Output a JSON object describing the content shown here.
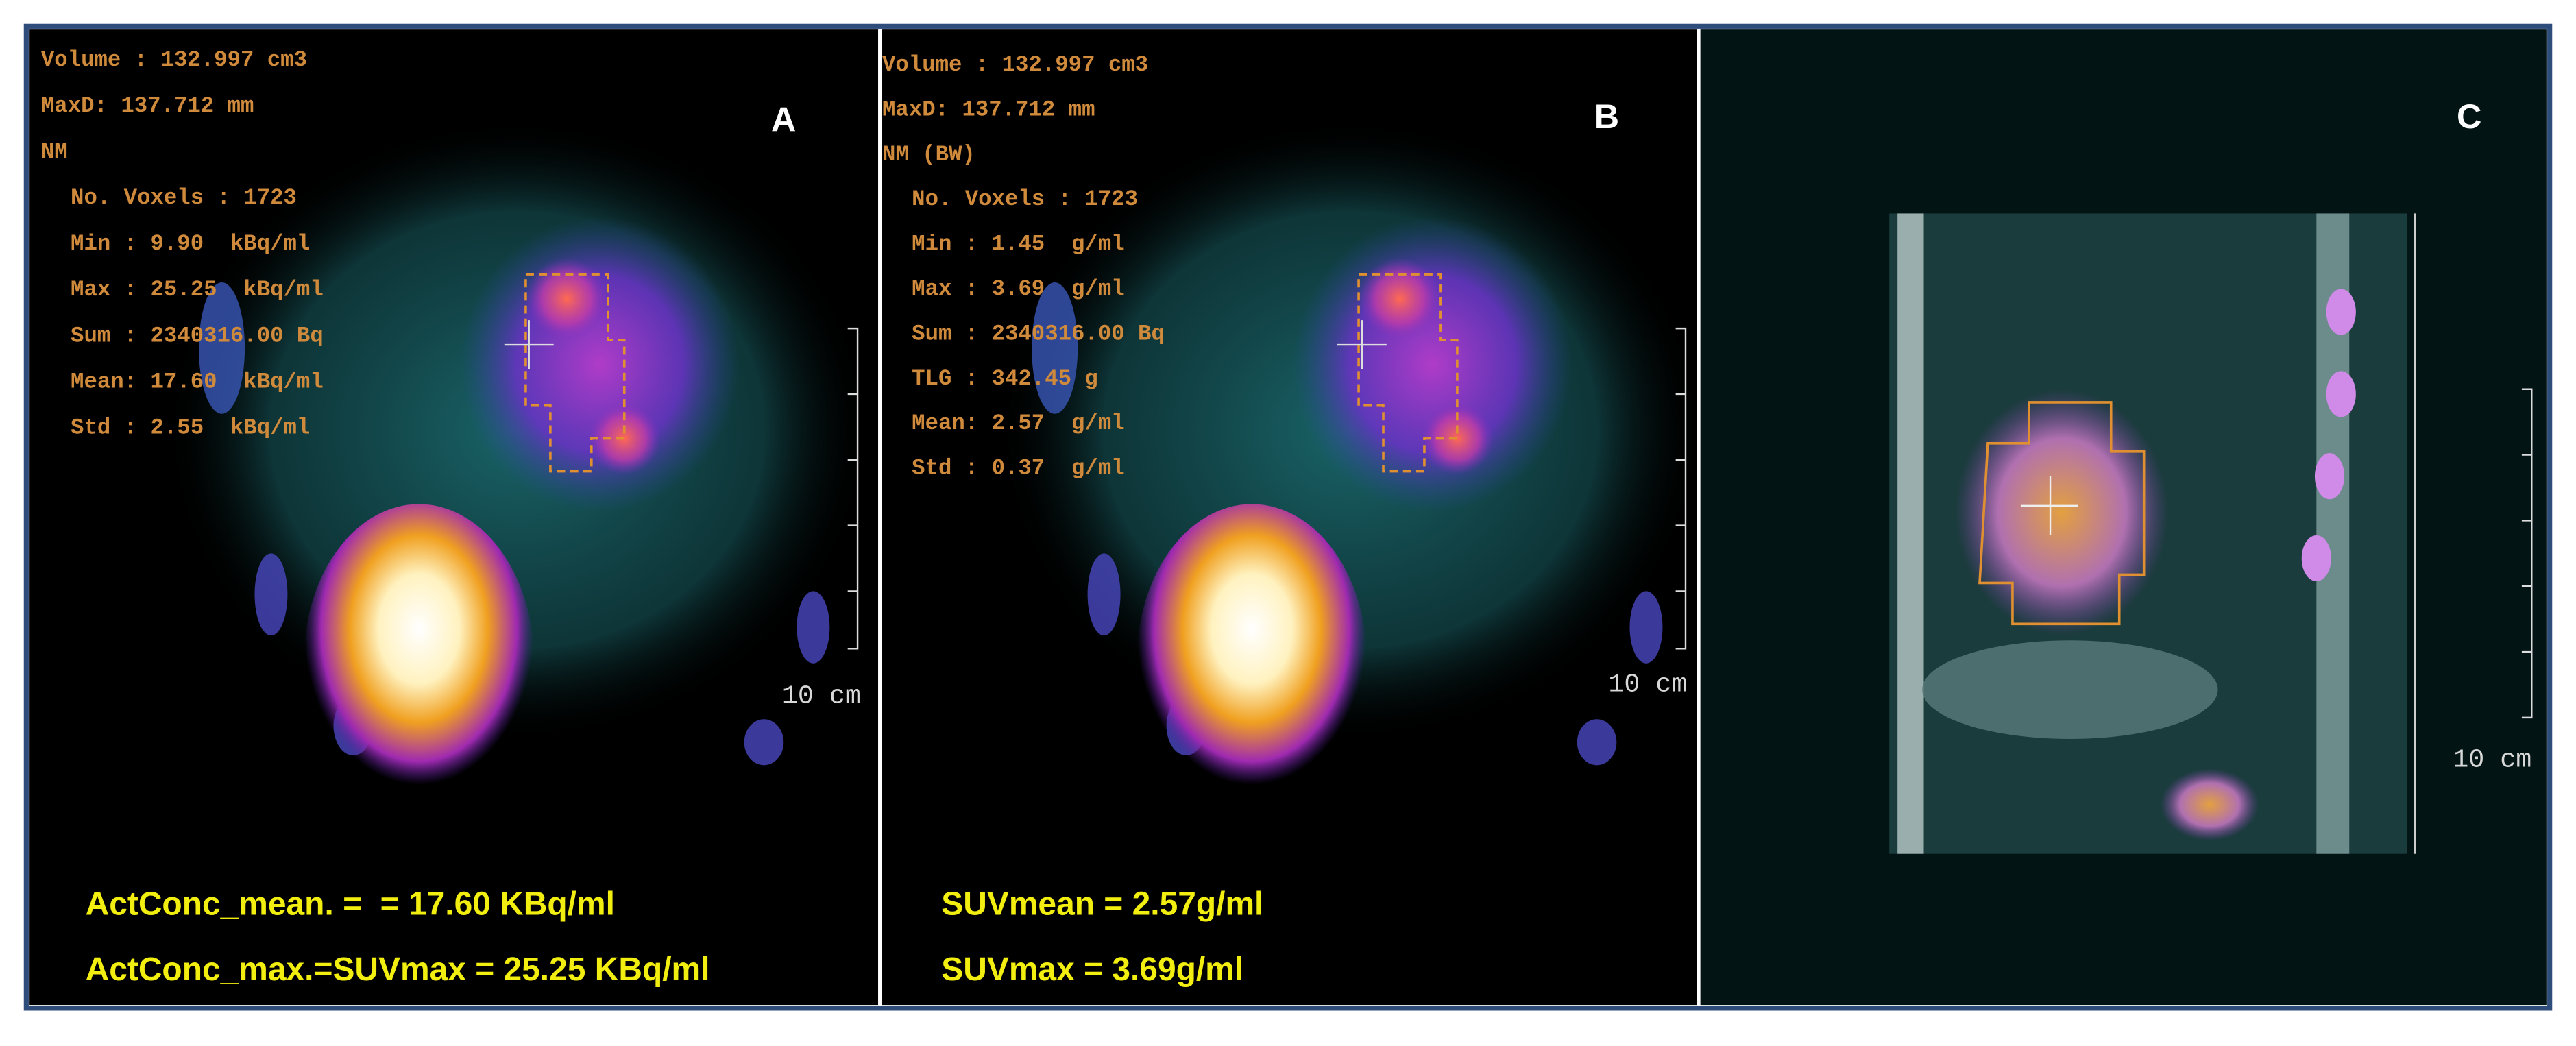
{
  "panels": [
    {
      "label": "A",
      "stats": [
        "Volume : 132.997 cm3",
        "MaxD: 137.712 mm",
        "NM",
        "No. Voxels : 1723",
        "Min : 9.90  kBq/ml",
        "Max : 25.25  kBq/ml",
        "Sum : 2340316.00 Bq",
        "Mean: 17.60  kBq/ml",
        "Std : 2.55  kBq/ml"
      ],
      "scale_label": "10 cm",
      "captions": [
        "ActConc_mean. =  = 17.60 KBq/ml",
        "ActConc_max.=SUVmax = 25.25 KBq/ml"
      ]
    },
    {
      "label": "B",
      "stats": [
        "Volume : 132.997 cm3",
        "MaxD: 137.712 mm",
        "NM (BW)",
        "No. Voxels : 1723",
        "Min : 1.45  g/ml",
        "Max : 3.69  g/ml",
        "Sum : 2340316.00 Bq",
        "TLG : 342.45 g",
        "Mean: 2.57  g/ml",
        "Std : 0.37  g/ml"
      ],
      "scale_label": "10 cm",
      "captions": [
        "SUVmean = 2.57g/ml",
        "SUVmax = 3.69g/ml"
      ]
    },
    {
      "label": "C",
      "scale_label": "10 cm"
    }
  ]
}
